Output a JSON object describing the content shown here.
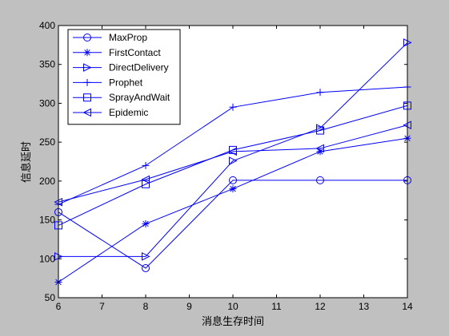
{
  "chart_data": {
    "type": "line",
    "xlabel": "消息生存时间",
    "ylabel": "信息延时",
    "xlim": [
      6,
      14
    ],
    "ylim": [
      50,
      400
    ],
    "x_ticks": [
      6,
      7,
      8,
      9,
      10,
      11,
      12,
      13,
      14
    ],
    "y_ticks": [
      50,
      100,
      150,
      200,
      250,
      300,
      350,
      400
    ],
    "grid": false,
    "legend_position": "top-left",
    "colors": {
      "series": "#0000ff",
      "axes": "#000000",
      "plot_background": "#ffffff",
      "figure_background": "#c0c0c0"
    },
    "x": [
      6,
      8,
      10,
      12,
      14
    ],
    "series": [
      {
        "name": "MaxProp",
        "marker": "circle",
        "values": [
          160,
          88,
          201,
          201,
          201
        ]
      },
      {
        "name": "FirstContact",
        "marker": "asterisk",
        "values": [
          70,
          145,
          190,
          238,
          255
        ]
      },
      {
        "name": "DirectDelivery",
        "marker": "triangle-right",
        "values": [
          103,
          103,
          226,
          268,
          378
        ]
      },
      {
        "name": "Prophet",
        "marker": "plus",
        "values": [
          170,
          220,
          295,
          314,
          321
        ]
      },
      {
        "name": "SprayAndWait",
        "marker": "square",
        "values": [
          143,
          196,
          240,
          265,
          297
        ]
      },
      {
        "name": "Epidemic",
        "marker": "triangle-left",
        "values": [
          173,
          202,
          238,
          242,
          272
        ]
      }
    ]
  }
}
